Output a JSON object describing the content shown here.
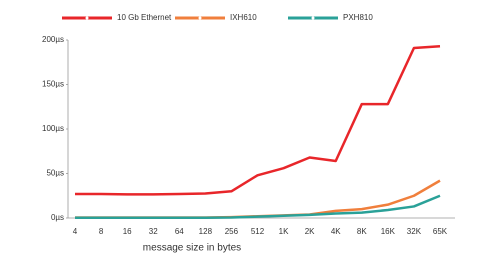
{
  "chart_data": {
    "type": "line",
    "x_label": "message size in bytes",
    "categories": [
      "4",
      "8",
      "16",
      "32",
      "64",
      "128",
      "256",
      "512",
      "1K",
      "2K",
      "4K",
      "8K",
      "16K",
      "32K",
      "65K"
    ],
    "series": [
      {
        "name": "10 Gb Ethernet",
        "color": "#e8262a",
        "values": [
          27,
          27,
          26.5,
          26.5,
          27,
          27.5,
          30,
          48,
          56,
          68,
          64,
          128,
          128,
          191,
          193
        ]
      },
      {
        "name": "IXH610",
        "color": "#f07f3c",
        "values": [
          0.5,
          0.5,
          0.5,
          0.5,
          0.5,
          0.5,
          1,
          2,
          3,
          4,
          8,
          10,
          15,
          25,
          42
        ]
      },
      {
        "name": "PXH810",
        "color": "#2aa198",
        "values": [
          0.3,
          0.3,
          0.3,
          0.3,
          0.3,
          0.3,
          0.5,
          1.5,
          2.5,
          3.5,
          5,
          6,
          9,
          13,
          25
        ]
      }
    ],
    "ylim": [
      0,
      200
    ],
    "yticks": [
      {
        "value": 0,
        "label": "0µs"
      },
      {
        "value": 50,
        "label": "50µs"
      },
      {
        "value": 100,
        "label": "100µs"
      },
      {
        "value": 150,
        "label": "150µs"
      },
      {
        "value": 200,
        "label": "200µs"
      }
    ]
  }
}
